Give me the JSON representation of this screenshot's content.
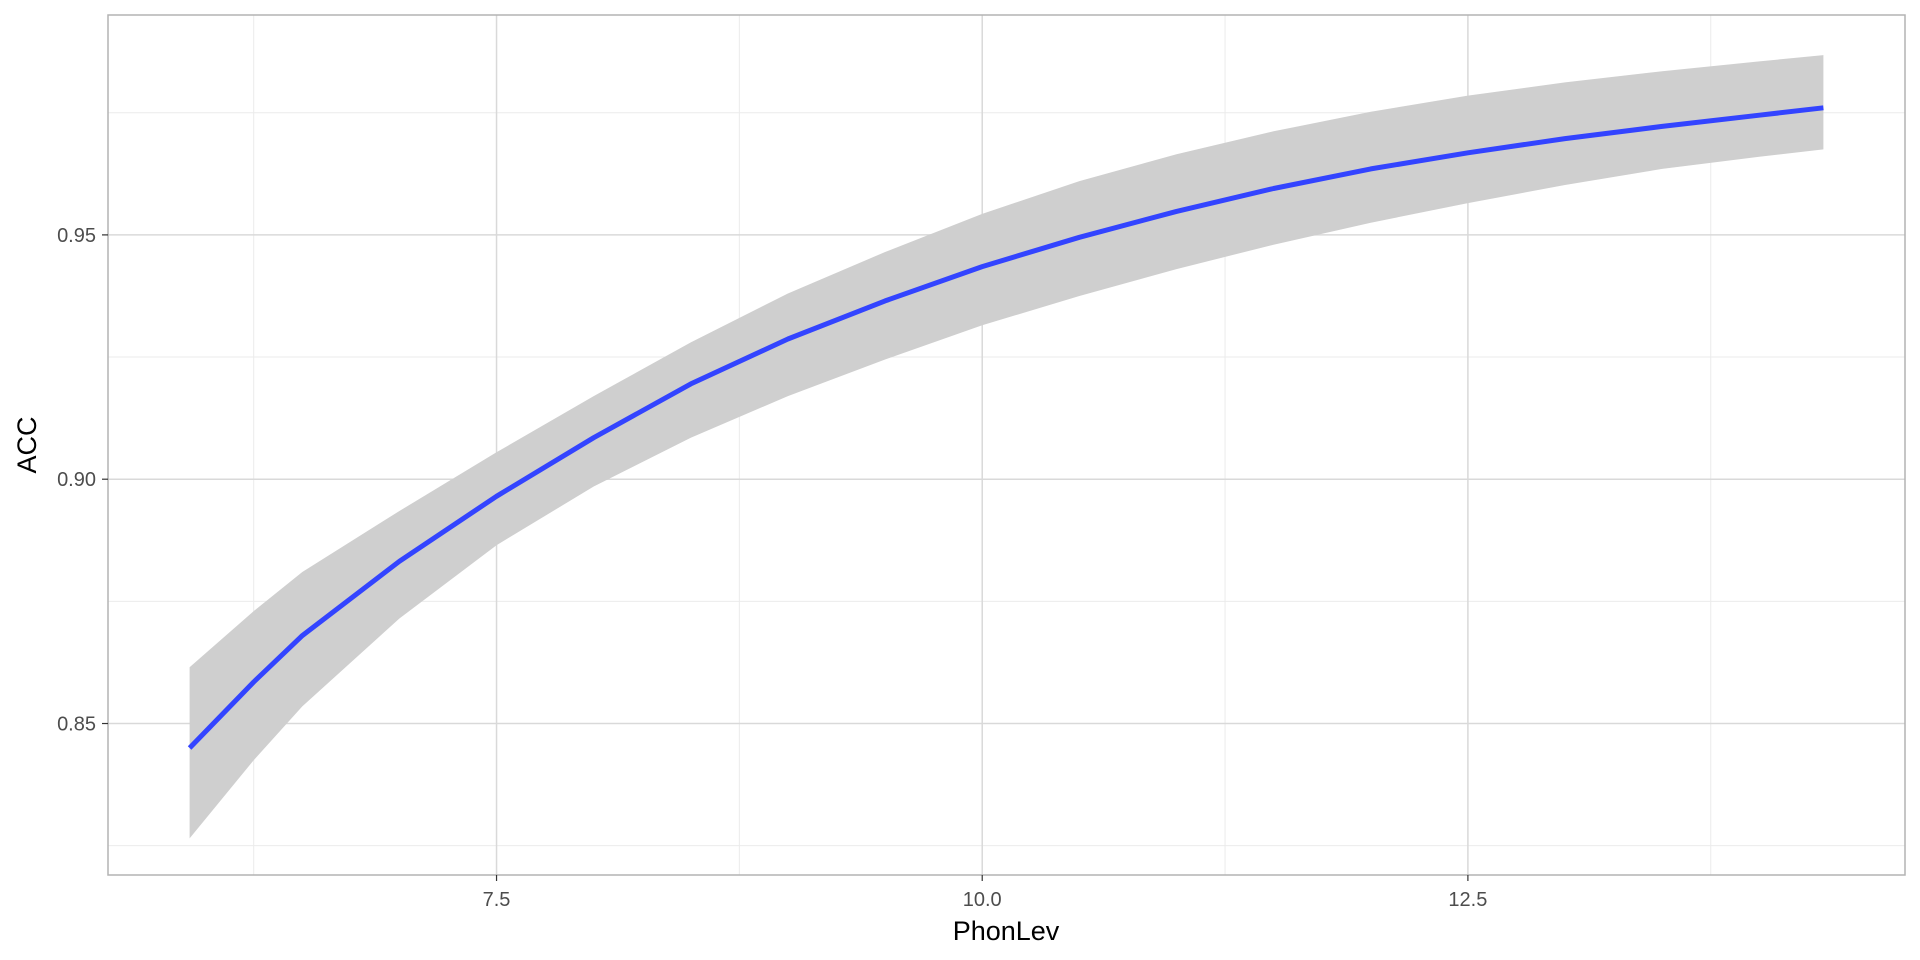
{
  "chart_data": {
    "type": "line",
    "title": "",
    "xlabel": "PhonLev",
    "ylabel": "ACC",
    "xlim": [
      5.5,
      14.75
    ],
    "ylim": [
      0.819,
      0.995
    ],
    "x_ticks": [
      7.5,
      10.0,
      12.5
    ],
    "x_tick_labels": [
      "7.5",
      "10.0",
      "12.5"
    ],
    "y_ticks": [
      0.85,
      0.9,
      0.95
    ],
    "y_tick_labels": [
      "0.85",
      "0.90",
      "0.95"
    ],
    "x_minor": [
      6.25,
      8.75,
      11.25,
      13.75
    ],
    "y_minor": [
      0.825,
      0.875,
      0.925,
      0.975
    ],
    "grid": true,
    "series": [
      {
        "type": "line",
        "color": "#3344ff",
        "x": [
          5.92,
          6.25,
          6.5,
          7.0,
          7.5,
          8.0,
          8.5,
          9.0,
          9.5,
          10.0,
          10.5,
          11.0,
          11.5,
          12.0,
          12.5,
          13.0,
          13.5,
          14.0,
          14.33
        ],
        "y": [
          0.845,
          0.8585,
          0.868,
          0.8832,
          0.8965,
          0.9085,
          0.9195,
          0.9287,
          0.9365,
          0.9435,
          0.9495,
          0.9548,
          0.9595,
          0.9635,
          0.9668,
          0.9697,
          0.9722,
          0.9745,
          0.976
        ]
      },
      {
        "type": "ribbon",
        "color": "#cfcfcf",
        "x": [
          5.92,
          6.25,
          6.5,
          7.0,
          7.5,
          8.0,
          8.5,
          9.0,
          9.5,
          10.0,
          10.5,
          11.0,
          11.5,
          12.0,
          12.5,
          13.0,
          13.5,
          14.0,
          14.33
        ],
        "upper": [
          0.8615,
          0.873,
          0.881,
          0.8935,
          0.9055,
          0.917,
          0.928,
          0.938,
          0.9465,
          0.9543,
          0.961,
          0.9665,
          0.9712,
          0.9752,
          0.9785,
          0.9812,
          0.9835,
          0.9855,
          0.9868
        ],
        "lower": [
          0.8265,
          0.8425,
          0.8535,
          0.8715,
          0.8865,
          0.8985,
          0.9085,
          0.917,
          0.9245,
          0.9315,
          0.9375,
          0.943,
          0.948,
          0.9525,
          0.9565,
          0.9602,
          0.9635,
          0.966,
          0.9675
        ]
      }
    ]
  }
}
